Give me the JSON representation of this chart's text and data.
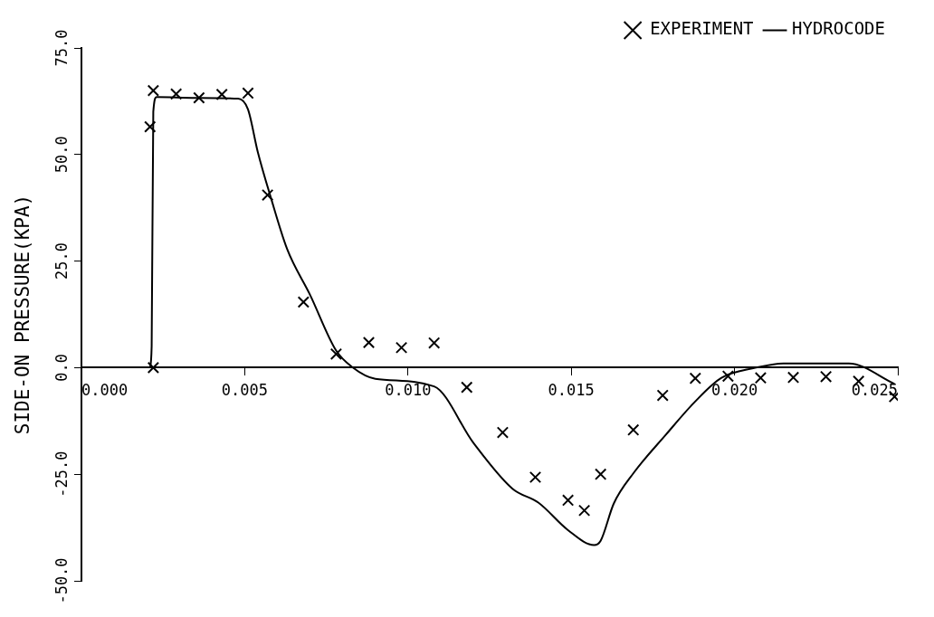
{
  "chart_data": {
    "type": "scatter",
    "ylabel": "SIDE-ON PRESSURE(KPA)",
    "xlim": [
      0,
      0.025
    ],
    "ylim": [
      -50,
      75
    ],
    "xticks": [
      {
        "value": 0,
        "label": "0.000"
      },
      {
        "value": 0.005,
        "label": "0.005"
      },
      {
        "value": 0.01,
        "label": "0.010"
      },
      {
        "value": 0.015,
        "label": "0.015"
      },
      {
        "value": 0.02,
        "label": "0.020"
      },
      {
        "value": 0.025,
        "label": "0.025"
      }
    ],
    "yticks": [
      {
        "value": -50,
        "label": "-50.0"
      },
      {
        "value": -25,
        "label": "-25.0"
      },
      {
        "value": 0,
        "label": "0.0"
      },
      {
        "value": 25,
        "label": "25.0"
      },
      {
        "value": 50,
        "label": "50.0"
      },
      {
        "value": 75,
        "label": "75.0"
      }
    ],
    "grid": false,
    "legend": "top right",
    "marker": "cross",
    "series": [
      {
        "name": "EXPERIMENT",
        "color": "#000000",
        "x": [
          0.0021,
          0.0022,
          0.0022,
          0.0029,
          0.0036,
          0.0043,
          0.0051,
          0.0057,
          0.0068,
          0.0078,
          0.0088,
          0.0098,
          0.0108,
          0.0118,
          0.0129,
          0.0139,
          0.0149,
          0.0154,
          0.0159,
          0.0169,
          0.0178,
          0.0188,
          0.0198,
          0.0208,
          0.0218,
          0.0228,
          0.0238,
          0.0249
        ],
        "values": [
          56.5,
          0,
          65,
          64.2,
          63.3,
          64.1,
          64.4,
          40.5,
          15.4,
          3.2,
          5.9,
          4.7,
          5.8,
          -4.6,
          -15.2,
          -25.7,
          -31.1,
          -33.5,
          -25,
          -14.6,
          -6.5,
          -2.5,
          -2,
          -2.4,
          -2.3,
          -2.1,
          -3.2,
          -6.8
        ]
      },
      {
        "name": "HYDROCODE",
        "type": "line",
        "color": "#000000",
        "marker": "none",
        "line_style": "solid",
        "x": [
          0.0021,
          0.00215,
          0.0022,
          0.0023,
          0.0035,
          0.0048,
          0.0051,
          0.0054,
          0.0058,
          0.0063,
          0.007,
          0.0078,
          0.0083,
          0.009,
          0.0108,
          0.012,
          0.0132,
          0.014,
          0.0149,
          0.0157,
          0.0159,
          0.0163,
          0.0169,
          0.0179,
          0.0188,
          0.0196,
          0.0206,
          0.0215,
          0.0235,
          0.0249
        ],
        "values": [
          0,
          5,
          60,
          63.5,
          63.3,
          63.1,
          60.6,
          50.6,
          39.9,
          27.8,
          17.1,
          4,
          0.1,
          -2.6,
          -4.4,
          -17.6,
          -28.4,
          -31.7,
          -38.1,
          -41.6,
          -40.6,
          -31.9,
          -24.8,
          -15.7,
          -7.9,
          -2.4,
          -0.1,
          1,
          1,
          -3.8
        ]
      }
    ]
  }
}
